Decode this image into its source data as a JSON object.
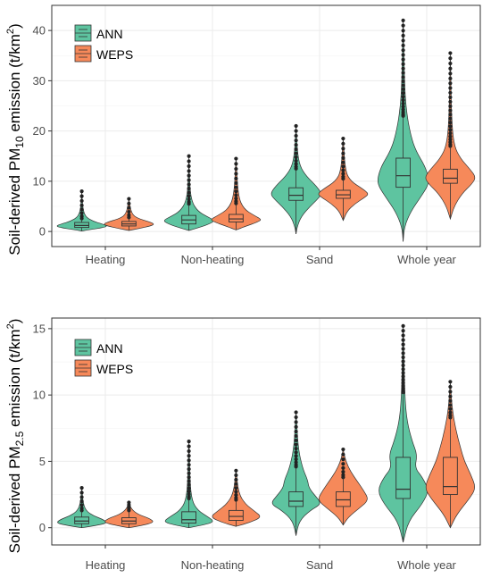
{
  "colors": {
    "ANN": "#5ec4a0",
    "WEPS": "#f6895a",
    "outline": "#333333",
    "grid": "#ebebeb",
    "panel_border": "#333333"
  },
  "chart_data": [
    {
      "type": "violin",
      "ylabel": "Soil-derived PM10 emission (t/km2)",
      "ylabel_parts": {
        "pre": "Soil-derived PM",
        "sub": "10",
        "mid": " emission (t/km",
        "sup": "2",
        "post": ")"
      },
      "ylim": [
        -3,
        45
      ],
      "yticks": [
        0,
        10,
        20,
        30,
        40
      ],
      "grid": true,
      "legend": {
        "placement": "top-left",
        "entries": [
          "ANN",
          "WEPS"
        ]
      },
      "categories": [
        "Heating",
        "Non-heating",
        "Sand",
        "Whole year"
      ],
      "series": [
        {
          "name": "ANN",
          "groups": [
            {
              "min": 0.1,
              "q1": 0.8,
              "median": 1.2,
              "q3": 1.8,
              "max": 8.0,
              "whisker_top": 2.6,
              "profile": [
                [
                  0.1,
                  0
                ],
                [
                  0.4,
                  0.35
                ],
                [
                  0.8,
                  0.85
                ],
                [
                  1.1,
                  1
                ],
                [
                  1.5,
                  0.8
                ],
                [
                  2.0,
                  0.45
                ],
                [
                  3.0,
                  0.12
                ],
                [
                  5.0,
                  0.03
                ],
                [
                  8.0,
                  0
                ]
              ]
            },
            {
              "min": 0.2,
              "q1": 1.5,
              "median": 2.3,
              "q3": 3.2,
              "max": 15.0,
              "whisker_top": 5.5,
              "profile": [
                [
                  0.2,
                  0
                ],
                [
                  0.8,
                  0.4
                ],
                [
                  1.6,
                  0.85
                ],
                [
                  2.2,
                  1
                ],
                [
                  3.0,
                  0.7
                ],
                [
                  4.0,
                  0.35
                ],
                [
                  6.0,
                  0.1
                ],
                [
                  10.0,
                  0.02
                ],
                [
                  15.0,
                  0
                ]
              ]
            },
            {
              "min": -0.5,
              "q1": 6.2,
              "median": 7.2,
              "q3": 8.7,
              "max": 21.0,
              "whisker_top": 12.5,
              "profile": [
                [
                  -0.5,
                  0
                ],
                [
                  1.0,
                  0.05
                ],
                [
                  3.0,
                  0.2
                ],
                [
                  5.0,
                  0.55
                ],
                [
                  6.5,
                  0.85
                ],
                [
                  7.5,
                  1
                ],
                [
                  9.0,
                  0.8
                ],
                [
                  11.0,
                  0.4
                ],
                [
                  13.0,
                  0.15
                ],
                [
                  16.0,
                  0.05
                ],
                [
                  21.0,
                  0
                ]
              ]
            },
            {
              "min": -2.0,
              "q1": 8.8,
              "median": 11.1,
              "q3": 14.6,
              "max": 42.0,
              "whisker_top": 23.0,
              "profile": [
                [
                  -2.0,
                  0
                ],
                [
                  1.0,
                  0.05
                ],
                [
                  4.0,
                  0.3
                ],
                [
                  7.0,
                  0.7
                ],
                [
                  9.0,
                  0.95
                ],
                [
                  10.5,
                  1
                ],
                [
                  13.0,
                  0.85
                ],
                [
                  16.0,
                  0.5
                ],
                [
                  19.0,
                  0.3
                ],
                [
                  24.0,
                  0.12
                ],
                [
                  30.0,
                  0.05
                ],
                [
                  42.0,
                  0
                ]
              ]
            }
          ]
        },
        {
          "name": "WEPS",
          "groups": [
            {
              "min": 0.2,
              "q1": 1.1,
              "median": 1.5,
              "q3": 2.0,
              "max": 6.5,
              "whisker_top": 2.8,
              "profile": [
                [
                  0.2,
                  0
                ],
                [
                  0.6,
                  0.4
                ],
                [
                  1.1,
                  0.85
                ],
                [
                  1.5,
                  1
                ],
                [
                  2.0,
                  0.75
                ],
                [
                  2.6,
                  0.35
                ],
                [
                  3.5,
                  0.1
                ],
                [
                  6.5,
                  0
                ]
              ]
            },
            {
              "min": 0.3,
              "q1": 1.9,
              "median": 2.5,
              "q3": 3.4,
              "max": 14.5,
              "whisker_top": 5.6,
              "profile": [
                [
                  0.3,
                  0
                ],
                [
                  1.0,
                  0.35
                ],
                [
                  1.9,
                  0.85
                ],
                [
                  2.4,
                  1
                ],
                [
                  3.2,
                  0.7
                ],
                [
                  4.5,
                  0.3
                ],
                [
                  7.0,
                  0.08
                ],
                [
                  14.5,
                  0
                ]
              ]
            },
            {
              "min": 2.2,
              "q1": 6.6,
              "median": 7.3,
              "q3": 8.2,
              "max": 18.5,
              "whisker_top": 10.5,
              "profile": [
                [
                  2.2,
                  0
                ],
                [
                  4.0,
                  0.15
                ],
                [
                  5.5,
                  0.45
                ],
                [
                  6.8,
                  0.85
                ],
                [
                  7.5,
                  1
                ],
                [
                  8.5,
                  0.75
                ],
                [
                  10.0,
                  0.3
                ],
                [
                  12.0,
                  0.08
                ],
                [
                  18.5,
                  0
                ]
              ]
            },
            {
              "min": 2.5,
              "q1": 9.6,
              "median": 10.6,
              "q3": 12.4,
              "max": 35.5,
              "whisker_top": 17.0,
              "profile": [
                [
                  2.5,
                  0
                ],
                [
                  5.0,
                  0.15
                ],
                [
                  7.5,
                  0.45
                ],
                [
                  9.5,
                  0.85
                ],
                [
                  10.8,
                  1
                ],
                [
                  12.5,
                  0.75
                ],
                [
                  14.5,
                  0.4
                ],
                [
                  17.0,
                  0.15
                ],
                [
                  22.0,
                  0.05
                ],
                [
                  35.5,
                  0
                ]
              ]
            }
          ]
        }
      ]
    },
    {
      "type": "violin",
      "ylabel": "Soil-derived PM2.5 emission (t/km2)",
      "ylabel_parts": {
        "pre": "Soil-derived PM",
        "sub": "2.5",
        "mid": " emission (t/km",
        "sup": "2",
        "post": ")"
      },
      "ylim": [
        -1.3,
        15.8
      ],
      "yticks": [
        0,
        5,
        10,
        15
      ],
      "grid": true,
      "legend": {
        "placement": "top-left",
        "entries": [
          "ANN",
          "WEPS"
        ]
      },
      "categories": [
        "Heating",
        "Non-heating",
        "Sand",
        "Whole year"
      ],
      "series": [
        {
          "name": "ANN",
          "groups": [
            {
              "min": 0.0,
              "q1": 0.3,
              "median": 0.5,
              "q3": 0.8,
              "max": 3.0,
              "whisker_top": 1.3,
              "profile": [
                [
                  0.0,
                  0
                ],
                [
                  0.15,
                  0.5
                ],
                [
                  0.35,
                  1
                ],
                [
                  0.6,
                  0.85
                ],
                [
                  0.9,
                  0.45
                ],
                [
                  1.3,
                  0.15
                ],
                [
                  2.0,
                  0.04
                ],
                [
                  3.0,
                  0
                ]
              ]
            },
            {
              "min": 0.0,
              "q1": 0.35,
              "median": 0.6,
              "q3": 1.2,
              "max": 6.5,
              "whisker_top": 2.2,
              "profile": [
                [
                  0.0,
                  0
                ],
                [
                  0.2,
                  0.55
                ],
                [
                  0.45,
                  1
                ],
                [
                  0.8,
                  0.75
                ],
                [
                  1.3,
                  0.35
                ],
                [
                  2.0,
                  0.12
                ],
                [
                  3.5,
                  0.04
                ],
                [
                  6.5,
                  0
                ]
              ]
            },
            {
              "min": -0.6,
              "q1": 1.6,
              "median": 2.0,
              "q3": 2.7,
              "max": 8.7,
              "whisker_top": 4.6,
              "profile": [
                [
                  -0.6,
                  0
                ],
                [
                  0.5,
                  0.12
                ],
                [
                  1.3,
                  0.55
                ],
                [
                  1.8,
                  1
                ],
                [
                  2.4,
                  0.75
                ],
                [
                  3.0,
                  0.5
                ],
                [
                  3.6,
                  0.45
                ],
                [
                  4.5,
                  0.25
                ],
                [
                  6.0,
                  0.08
                ],
                [
                  8.7,
                  0
                ]
              ]
            },
            {
              "min": -1.1,
              "q1": 2.2,
              "median": 2.9,
              "q3": 5.3,
              "max": 15.2,
              "whisker_top": 10.2,
              "profile": [
                [
                  -1.1,
                  0
                ],
                [
                  0.5,
                  0.2
                ],
                [
                  1.8,
                  0.75
                ],
                [
                  2.8,
                  1
                ],
                [
                  3.8,
                  0.75
                ],
                [
                  4.5,
                  0.45
                ],
                [
                  5.5,
                  0.55
                ],
                [
                  6.5,
                  0.35
                ],
                [
                  8.0,
                  0.15
                ],
                [
                  10.0,
                  0.06
                ],
                [
                  15.2,
                  0
                ]
              ]
            }
          ]
        },
        {
          "name": "WEPS",
          "groups": [
            {
              "min": 0.0,
              "q1": 0.3,
              "median": 0.5,
              "q3": 0.75,
              "max": 1.9,
              "whisker_top": 1.3,
              "profile": [
                [
                  0.0,
                  0
                ],
                [
                  0.15,
                  0.45
                ],
                [
                  0.4,
                  1
                ],
                [
                  0.7,
                  0.8
                ],
                [
                  1.0,
                  0.35
                ],
                [
                  1.4,
                  0.1
                ],
                [
                  1.9,
                  0
                ]
              ]
            },
            {
              "min": 0.1,
              "q1": 0.55,
              "median": 0.85,
              "q3": 1.3,
              "max": 4.3,
              "whisker_top": 2.1,
              "profile": [
                [
                  0.1,
                  0
                ],
                [
                  0.4,
                  0.55
                ],
                [
                  0.8,
                  1
                ],
                [
                  1.2,
                  0.75
                ],
                [
                  1.8,
                  0.35
                ],
                [
                  2.6,
                  0.1
                ],
                [
                  4.3,
                  0
                ]
              ]
            },
            {
              "min": 0.2,
              "q1": 1.6,
              "median": 2.1,
              "q3": 2.7,
              "max": 5.9,
              "whisker_top": 3.8,
              "profile": [
                [
                  0.2,
                  0
                ],
                [
                  0.8,
                  0.2
                ],
                [
                  1.5,
                  0.65
                ],
                [
                  2.1,
                  1
                ],
                [
                  2.8,
                  0.8
                ],
                [
                  3.5,
                  0.55
                ],
                [
                  4.2,
                  0.3
                ],
                [
                  5.0,
                  0.1
                ],
                [
                  5.9,
                  0
                ]
              ]
            },
            {
              "min": 0.0,
              "q1": 2.5,
              "median": 3.1,
              "q3": 5.3,
              "max": 11.0,
              "whisker_top": 8.3,
              "profile": [
                [
                  0.0,
                  0
                ],
                [
                  1.0,
                  0.25
                ],
                [
                  2.2,
                  0.75
                ],
                [
                  3.0,
                  1
                ],
                [
                  4.0,
                  0.8
                ],
                [
                  5.0,
                  0.55
                ],
                [
                  6.0,
                  0.4
                ],
                [
                  7.5,
                  0.2
                ],
                [
                  9.0,
                  0.07
                ],
                [
                  11.0,
                  0
                ]
              ]
            }
          ]
        }
      ]
    }
  ]
}
